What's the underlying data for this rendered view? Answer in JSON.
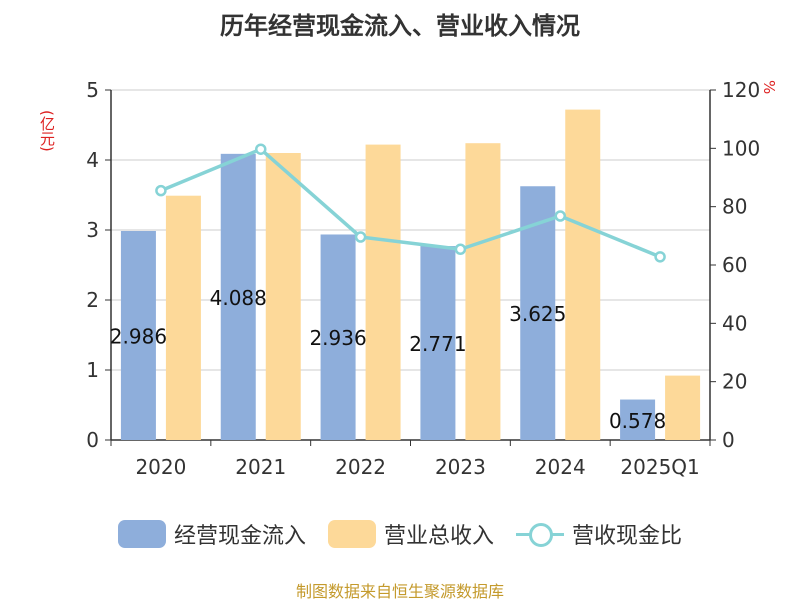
{
  "chart_data": {
    "type": "bar",
    "title": "历年经营现金流入、营业收入情况",
    "categories": [
      "2020",
      "2021",
      "2022",
      "2023",
      "2024",
      "2025Q1"
    ],
    "y_left": {
      "unit": "(亿元)",
      "ylim": [
        0,
        5
      ],
      "ticks": [
        "0",
        "1",
        "2",
        "3",
        "4",
        "5"
      ]
    },
    "y_right": {
      "unit": "%",
      "ylim": [
        0,
        120
      ],
      "ticks": [
        "0",
        "20",
        "40",
        "60",
        "80",
        "100",
        "120"
      ]
    },
    "series": [
      {
        "name": "经营现金流入",
        "type": "bar",
        "axis": "left",
        "color": "#8eaedb",
        "values": [
          2.986,
          4.088,
          2.936,
          2.771,
          3.625,
          0.578
        ],
        "labels": [
          "2.986",
          "4.088",
          "2.936",
          "2.771",
          "3.625",
          "0.578"
        ]
      },
      {
        "name": "营业总收入",
        "type": "bar",
        "axis": "left",
        "color": "#fdd999",
        "values": [
          3.49,
          4.1,
          4.22,
          4.24,
          4.72,
          0.92
        ]
      },
      {
        "name": "营收现金比",
        "type": "line",
        "axis": "right",
        "color": "#86d3d6",
        "values": [
          85.5,
          99.7,
          69.6,
          65.4,
          76.8,
          62.8
        ]
      }
    ],
    "grid": true,
    "legend_position": "bottom"
  },
  "source_text": "制图数据来自恒生聚源数据库"
}
